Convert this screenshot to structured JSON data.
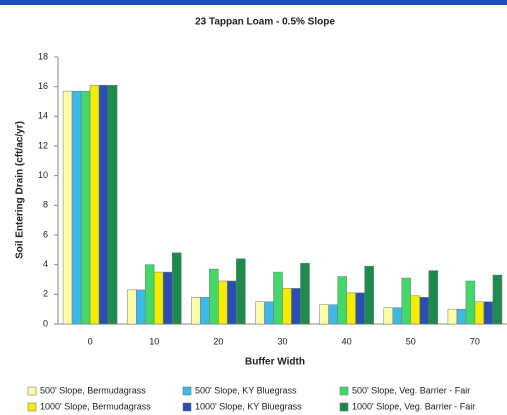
{
  "chart_data": {
    "type": "bar",
    "title": "23 Tappan Loam - 0.5% Slope",
    "x_label": "Buffer Width",
    "y_label": "Soil Entering Drain (cft/ac/yr)",
    "categories": [
      "0",
      "10",
      "20",
      "30",
      "40",
      "50",
      "70"
    ],
    "series": [
      {
        "name": "500' Slope, Bermudagrass",
        "color": "#ffffa8",
        "values": [
          15.7,
          2.3,
          1.8,
          1.5,
          1.3,
          1.1,
          1.0
        ]
      },
      {
        "name": "500' Slope, KY Bluegrass",
        "color": "#3db8e8",
        "values": [
          15.7,
          2.3,
          1.8,
          1.5,
          1.3,
          1.1,
          1.0
        ]
      },
      {
        "name": "500' Slope, Veg. Barrier - Fair",
        "color": "#44d86a",
        "values": [
          15.7,
          4.0,
          3.7,
          3.5,
          3.2,
          3.1,
          2.9
        ]
      },
      {
        "name": "1000' Slope, Bermudagrass",
        "color": "#f2ee00",
        "values": [
          16.1,
          3.5,
          2.9,
          2.4,
          2.1,
          1.9,
          1.5
        ]
      },
      {
        "name": "1000' Slope, KY Bluegrass",
        "color": "#2a4fb0",
        "values": [
          16.1,
          3.5,
          2.9,
          2.4,
          2.1,
          1.8,
          1.5
        ]
      },
      {
        "name": "1000' Slope, Veg. Barrier - Fair",
        "color": "#1c8c4c",
        "values": [
          16.1,
          4.8,
          4.4,
          4.1,
          3.9,
          3.6,
          3.3
        ]
      }
    ],
    "ylim": [
      0,
      18
    ],
    "yticks": [
      0,
      2,
      4,
      6,
      8,
      10,
      12,
      14,
      16,
      18
    ],
    "grid": false
  }
}
